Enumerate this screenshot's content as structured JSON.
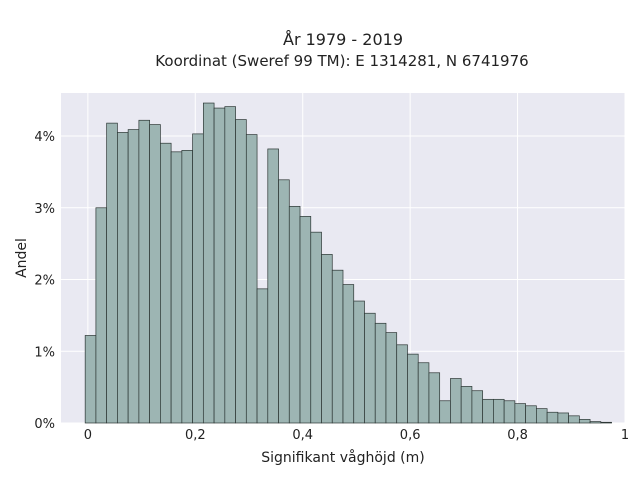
{
  "chart_data": {
    "type": "bar",
    "title": "År 1979 - 2019",
    "subtitle": "Koordinat (Sweref 99 TM): E 1314281, N 6741976",
    "xlabel": "Signifikant våghöjd (m)",
    "ylabel": "Andel",
    "xlim": [
      -0.05,
      1.0
    ],
    "ylim": [
      0,
      4.6
    ],
    "xticks": [
      {
        "value": 0,
        "label": "0"
      },
      {
        "value": 0.2,
        "label": "0,2"
      },
      {
        "value": 0.4,
        "label": "0,4"
      },
      {
        "value": 0.6,
        "label": "0,6"
      },
      {
        "value": 0.8,
        "label": "0,8"
      },
      {
        "value": 1.0,
        "label": "1"
      }
    ],
    "yticks": [
      {
        "value": 0,
        "label": "0%"
      },
      {
        "value": 1,
        "label": "1%"
      },
      {
        "value": 2,
        "label": "2%"
      },
      {
        "value": 3,
        "label": "3%"
      },
      {
        "value": 4,
        "label": "4%"
      }
    ],
    "grid": true,
    "bin_width": 0.02,
    "bin_starts": [
      -0.005,
      0.015,
      0.035,
      0.055,
      0.075,
      0.095,
      0.115,
      0.135,
      0.155,
      0.175,
      0.195,
      0.215,
      0.235,
      0.255,
      0.275,
      0.295,
      0.315,
      0.335,
      0.355,
      0.375,
      0.395,
      0.415,
      0.435,
      0.455,
      0.475,
      0.495,
      0.515,
      0.535,
      0.555,
      0.575,
      0.595,
      0.615,
      0.635,
      0.655,
      0.675,
      0.695,
      0.715,
      0.735,
      0.755,
      0.775,
      0.795,
      0.815,
      0.835,
      0.855,
      0.875,
      0.895,
      0.915,
      0.935,
      0.955,
      0.975
    ],
    "values": [
      1.22,
      3.0,
      4.18,
      4.05,
      4.09,
      4.22,
      4.16,
      3.9,
      3.78,
      3.8,
      4.03,
      4.46,
      4.39,
      4.41,
      4.23,
      4.02,
      1.87,
      3.82,
      3.39,
      3.02,
      2.88,
      2.66,
      2.35,
      2.13,
      1.93,
      1.7,
      1.53,
      1.39,
      1.26,
      1.09,
      0.96,
      0.84,
      0.7,
      0.31,
      0.62,
      0.51,
      0.45,
      0.33,
      0.33,
      0.31,
      0.27,
      0.24,
      0.2,
      0.15,
      0.14,
      0.1,
      0.05,
      0.02,
      0.01,
      0.0
    ],
    "colors": {
      "bar_fill": "#9db5b3",
      "bar_stroke": "#2b3533",
      "plot_background": "#e9e9f2",
      "grid": "#ffffff"
    }
  }
}
